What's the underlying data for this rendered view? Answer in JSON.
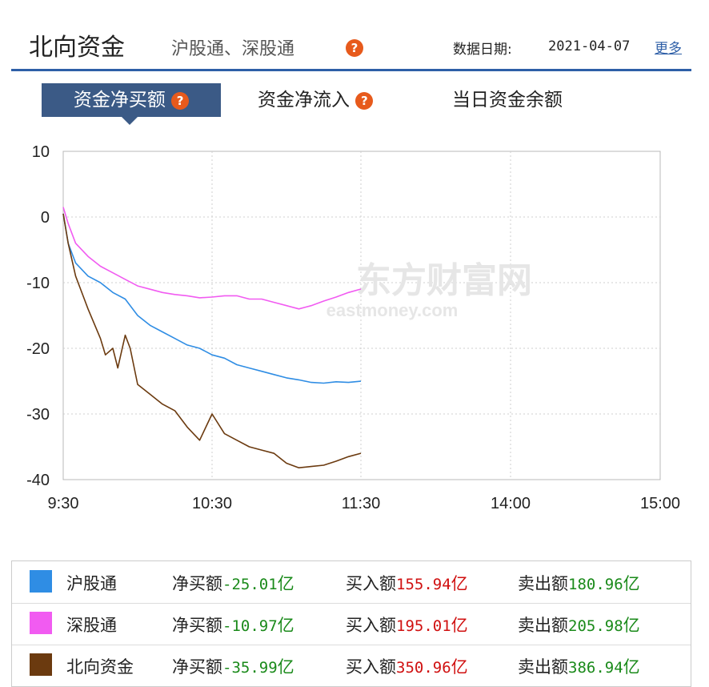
{
  "header": {
    "title": "北向资金",
    "subtitle": "沪股通、深股通",
    "help_glyph": "?",
    "date_label": "数据日期:",
    "date_value": "2021-04-07",
    "more_label": "更多"
  },
  "tabs": [
    {
      "label": "资金净买额",
      "active": true
    },
    {
      "label": "资金净流入",
      "active": false
    },
    {
      "label": "当日资金余额",
      "active": false
    }
  ],
  "watermark": {
    "brand": "东方财富网",
    "url": "eastmoney.com"
  },
  "chart_data": {
    "type": "line",
    "y_ticks": [
      "10",
      "0",
      "-10",
      "-20",
      "-30",
      "-40"
    ],
    "x_ticks": [
      "9:30",
      "10:30",
      "11:30",
      "14:00",
      "15:00"
    ],
    "ylim": [
      -40,
      10
    ],
    "grid": true,
    "series": [
      {
        "name": "沪股通",
        "color": "#2f8de4",
        "x": [
          0,
          2,
          5,
          10,
          15,
          20,
          25,
          30,
          35,
          40,
          45,
          50,
          55,
          60,
          65,
          70,
          75,
          80,
          85,
          90,
          95,
          100,
          105,
          110,
          115,
          120
        ],
        "values": [
          0.5,
          -4,
          -7,
          -9,
          -10,
          -11.5,
          -12.5,
          -15,
          -16.5,
          -17.5,
          -18.5,
          -19.5,
          -20,
          -21,
          -21.5,
          -22.5,
          -23,
          -23.5,
          -24,
          -24.5,
          -24.8,
          -25.2,
          -25.3,
          -25.1,
          -25.2,
          -25.01
        ]
      },
      {
        "name": "深股通",
        "color": "#f15bf1",
        "x": [
          0,
          2,
          5,
          10,
          15,
          20,
          25,
          30,
          35,
          40,
          45,
          50,
          55,
          60,
          65,
          70,
          75,
          80,
          85,
          90,
          95,
          100,
          105,
          110,
          115,
          120
        ],
        "values": [
          1.5,
          -1,
          -4,
          -6,
          -7.5,
          -8.5,
          -9.5,
          -10.5,
          -11,
          -11.5,
          -11.8,
          -12,
          -12.3,
          -12.2,
          -12,
          -12,
          -12.5,
          -12.5,
          -13,
          -13.5,
          -14,
          -13.5,
          -12.8,
          -12.2,
          -11.5,
          -10.97
        ]
      },
      {
        "name": "北向资金",
        "color": "#6b3a0f",
        "x": [
          0,
          2,
          5,
          8,
          10,
          15,
          17,
          20,
          22,
          25,
          27,
          30,
          35,
          40,
          45,
          50,
          55,
          60,
          65,
          70,
          75,
          80,
          85,
          90,
          95,
          100,
          105,
          110,
          115,
          120
        ],
        "values": [
          0.5,
          -4,
          -9,
          -12,
          -14,
          -18.5,
          -21,
          -20,
          -23,
          -18,
          -20,
          -25.5,
          -27,
          -28.5,
          -29.5,
          -32,
          -34,
          -30,
          -33,
          -34,
          -35,
          -35.5,
          -36,
          -37.5,
          -38.2,
          -38,
          -37.8,
          -37.2,
          -36.5,
          -35.99
        ]
      }
    ]
  },
  "legend": [
    {
      "name": "沪股通",
      "swatch": "#2f8de4",
      "net_label": "净买额",
      "net_value": "-25.01",
      "buy_label": "买入额",
      "buy_value": "155.94",
      "sell_label": "卖出额",
      "sell_value": "180.96",
      "unit": "亿"
    },
    {
      "name": "深股通",
      "swatch": "#f15bf1",
      "net_label": "净买额",
      "net_value": "-10.97",
      "buy_label": "买入额",
      "buy_value": "195.01",
      "sell_label": "卖出额",
      "sell_value": "205.98",
      "unit": "亿"
    },
    {
      "name": "北向资金",
      "swatch": "#6b3a0f",
      "net_label": "净买额",
      "net_value": "-35.99",
      "buy_label": "买入额",
      "buy_value": "350.96",
      "sell_label": "卖出额",
      "sell_value": "386.94",
      "unit": "亿"
    }
  ]
}
